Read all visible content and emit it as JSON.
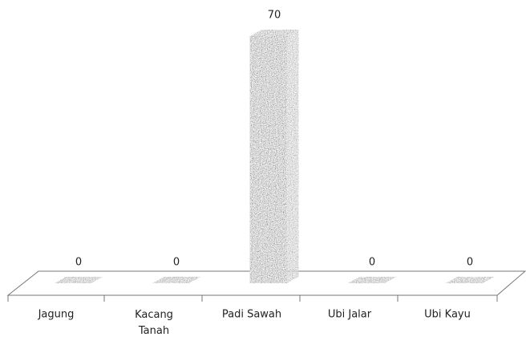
{
  "chart_data": {
    "type": "bar3d",
    "categories": [
      "Jagung",
      "Kacang Tanah",
      "Padi Sawah",
      "Ubi Jalar",
      "Ubi Kayu"
    ],
    "values": [
      0,
      0,
      70,
      0,
      0
    ],
    "color": "#8a8a8a"
  }
}
